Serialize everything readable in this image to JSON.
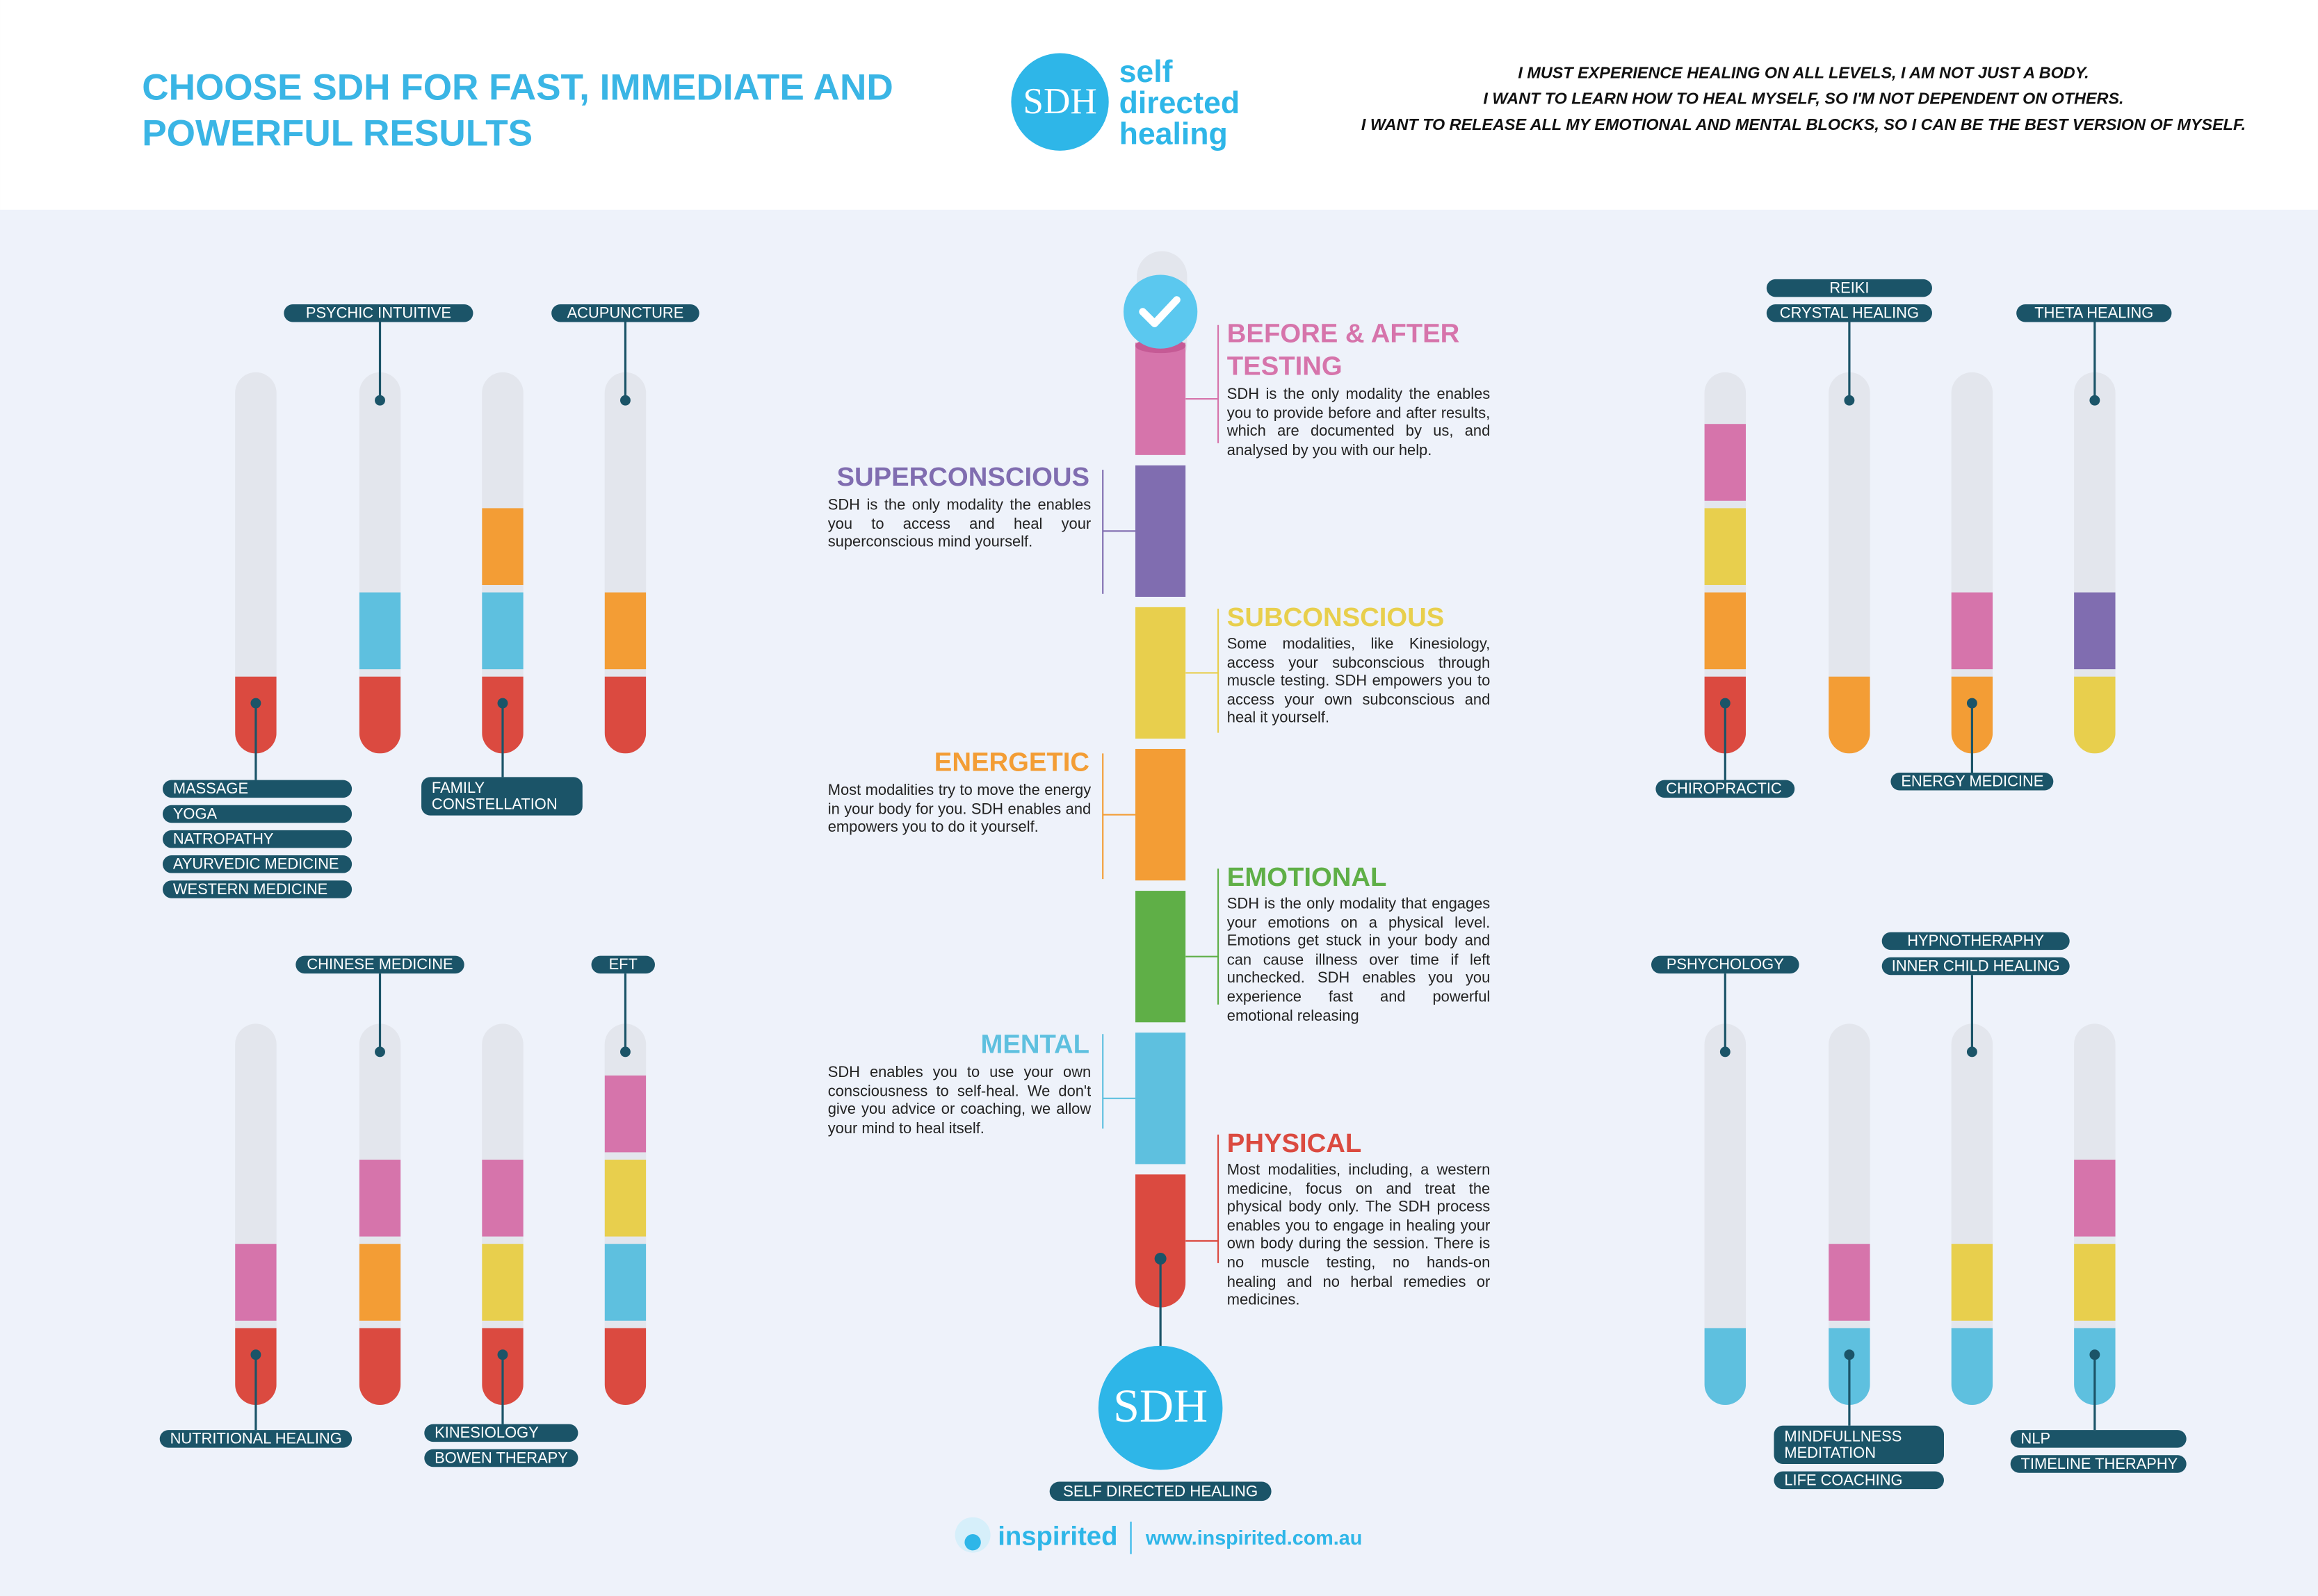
{
  "header": {
    "title": [
      "CHOOSE SDH FOR FAST, IMMEDIATE AND",
      "POWERFUL RESULTS"
    ],
    "logo": {
      "mark": "SDH",
      "words": [
        "self",
        "directed",
        "healing"
      ]
    },
    "statements": [
      "I MUST EXPERIENCE HEALING ON ALL LEVELS, I AM NOT JUST A BODY.",
      "I WANT TO LEARN HOW TO HEAL MYSELF, SO I'M NOT DEPENDENT ON OTHERS.",
      "I WANT TO RELEASE ALL MY EMOTIONAL AND MENTAL BLOCKS, SO I CAN BE THE BEST VERSION OF MYSELF."
    ]
  },
  "center": {
    "sections": [
      {
        "title": [
          "BEFORE & AFTER",
          "TESTING"
        ],
        "color": "#d674ab",
        "body": "SDH is the only modality the enables you to provide before and after results, which are documented by us, and analysed by you with our help."
      },
      {
        "title": [
          "SUPERCONSCIOUS"
        ],
        "color": "#806db0",
        "body": "SDH is the only modality the enables you to access and heal your superconscious mind yourself."
      },
      {
        "title": [
          "SUBCONSCIOUS"
        ],
        "color": "#e8cf4d",
        "body": "Some modalities, like Kinesiology, access your subconscious through muscle testing. SDH empowers you to access your own subconscious and heal it yourself."
      },
      {
        "title": [
          "ENERGETIC"
        ],
        "color": "#f39d35",
        "body": "Most modalities try to move the energy in your body for you. SDH enables and empowers you to do it yourself."
      },
      {
        "title": [
          "EMOTIONAL"
        ],
        "color": "#5faf47",
        "body": "SDH is the only modality that engages your emotions on a physical level. Emotions get stuck in your body and can cause illness over time if left unchecked. SDH enables you you experience fast and powerful emotional releasing"
      },
      {
        "title": [
          "MENTAL"
        ],
        "color": "#5ec0df",
        "body": "SDH enables you to use your own consciousness to self-heal. We don't give you advice or coaching, we allow your mind to heal itself."
      },
      {
        "title": [
          "PHYSICAL"
        ],
        "color": "#db4a40",
        "body": "Most modalities, including, a western medicine, focus on and treat the physical body only. The SDH process enables you to engage in healing your own body during the session. There is no muscle testing, no hands-on healing and no herbal remedies or medicines."
      }
    ],
    "logo": "SDH",
    "label": "SELF DIRECTED HEALING"
  },
  "groups": [
    {
      "tubes": [
        [
          "#db4a40"
        ],
        [
          "#db4a40",
          "#5ec0df"
        ],
        [
          "#db4a40",
          "#5ec0df",
          "#f39d35"
        ],
        [
          "#db4a40",
          "#f39d35"
        ]
      ],
      "labels": [
        {
          "items": [
            "PSYCHIC INTUITIVE"
          ]
        },
        {
          "items": [
            "ACUPUNCTURE"
          ]
        },
        {
          "items": [
            "MASSAGE",
            "YOGA",
            "NATROPATHY",
            "AYURVEDIC MEDICINE",
            "WESTERN MEDICINE"
          ]
        },
        {
          "items": [
            [
              "FAMILY",
              "CONSTELLATION"
            ]
          ]
        }
      ]
    },
    {
      "tubes": [
        [
          "#db4a40",
          "#f39d35",
          "#e8cf4d",
          "#d674ab"
        ],
        [
          "#f39d35"
        ],
        [
          "#f39d35",
          "#d674ab"
        ],
        [
          "#e8cf4d",
          "#806db0"
        ]
      ],
      "labels": [
        {
          "items": [
            "REIKI",
            "CRYSTAL HEALING"
          ]
        },
        {
          "items": [
            "THETA HEALING"
          ]
        },
        {
          "items": [
            "CHIROPRACTIC"
          ]
        },
        {
          "items": [
            "ENERGY MEDICINE"
          ]
        }
      ]
    },
    {
      "tubes": [
        [
          "#db4a40",
          "#d674ab"
        ],
        [
          "#db4a40",
          "#f39d35",
          "#d674ab"
        ],
        [
          "#db4a40",
          "#e8cf4d",
          "#d674ab"
        ],
        [
          "#db4a40",
          "#5ec0df",
          "#e8cf4d",
          "#d674ab"
        ]
      ],
      "labels": [
        {
          "items": [
            "CHINESE MEDICINE"
          ]
        },
        {
          "items": [
            "EFT"
          ]
        },
        {
          "items": [
            "NUTRITIONAL HEALING"
          ]
        },
        {
          "items": [
            "KINESIOLOGY",
            "BOWEN THERAPY"
          ]
        }
      ]
    },
    {
      "tubes": [
        [
          "#5ec0df"
        ],
        [
          "#5ec0df",
          "#d674ab"
        ],
        [
          "#5ec0df",
          "#e8cf4d"
        ],
        [
          "#5ec0df",
          "#e8cf4d",
          "#d674ab"
        ]
      ],
      "labels": [
        {
          "items": [
            "PSHYCHOLOGY"
          ]
        },
        {
          "items": [
            "HYPNOTHERAPHY",
            "INNER CHILD HEALING"
          ]
        },
        {
          "items": [
            [
              "MINDFULLNESS",
              "MEDITATION"
            ],
            "LIFE COACHING"
          ]
        },
        {
          "items": [
            "NLP",
            "TIMELINE THERAPHY"
          ]
        }
      ]
    }
  ],
  "footer": {
    "brand": "inspirited",
    "url": "www.inspirited.com.au"
  }
}
